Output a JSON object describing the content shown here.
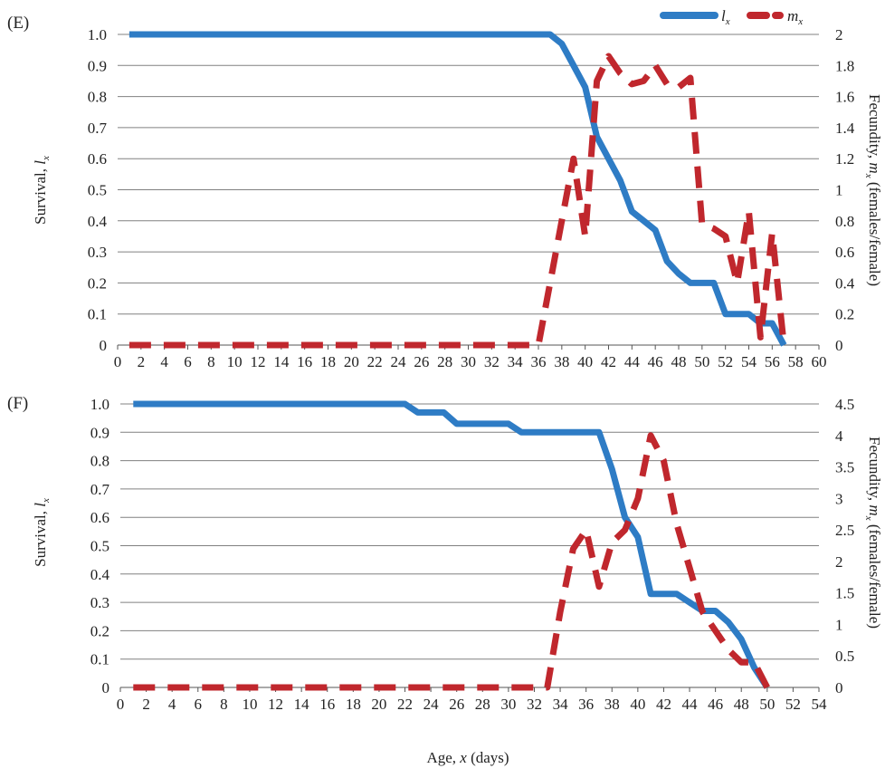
{
  "legend": {
    "items": [
      {
        "label": "l",
        "sub": "x",
        "color": "#2e7cc5",
        "style": "solid"
      },
      {
        "label": "m",
        "sub": "x",
        "color": "#c0272d",
        "style": "dashed"
      }
    ],
    "placement": "top-right"
  },
  "colors": {
    "lx": "#2e7cc5",
    "mx": "#c0272d",
    "grid": "#808080"
  },
  "chart_data": [
    {
      "panel_label": "(E)",
      "type": "line",
      "grid": true,
      "xlim": [
        0,
        60
      ],
      "xticks": [
        0,
        2,
        4,
        6,
        8,
        10,
        12,
        14,
        16,
        18,
        20,
        22,
        24,
        26,
        28,
        30,
        32,
        34,
        36,
        38,
        40,
        42,
        44,
        46,
        48,
        50,
        52,
        54,
        56,
        58,
        60
      ],
      "xlabel": "",
      "y_left": {
        "label_main": "Survival, ",
        "label_var": "l",
        "label_sub": "x",
        "lim": [
          0,
          1
        ],
        "ticks": [
          "0",
          "0.1",
          "0.2",
          "0.3",
          "0.4",
          "0.5",
          "0.6",
          "0.7",
          "0.8",
          "0.9",
          "1.0"
        ]
      },
      "y_right": {
        "label_pre": "Fecundity, ",
        "label_var": "m",
        "label_sub": "x",
        "label_post": " (females/female)",
        "lim": [
          0,
          2
        ],
        "ticks": [
          "0",
          "0.2",
          "0.4",
          "0.6",
          "0.8",
          "1",
          "1.2",
          "1.4",
          "1.6",
          "1.8",
          "2"
        ]
      },
      "series": [
        {
          "name": "lx",
          "axis": "left",
          "x": [
            1,
            36,
            37,
            38,
            39,
            40,
            41,
            42,
            43,
            44,
            45,
            46,
            47,
            48,
            49,
            50,
            51,
            52,
            53,
            54,
            55,
            56,
            57
          ],
          "y": [
            1,
            1,
            1,
            0.97,
            0.9,
            0.83,
            0.67,
            0.6,
            0.53,
            0.43,
            0.4,
            0.37,
            0.27,
            0.23,
            0.2,
            0.2,
            0.2,
            0.1,
            0.1,
            0.1,
            0.07,
            0.07,
            0
          ]
        },
        {
          "name": "mx",
          "axis": "right",
          "x": [
            1,
            36,
            37,
            38,
            39,
            40,
            41,
            42,
            43,
            44,
            45,
            46,
            47,
            48,
            49,
            50,
            51,
            52,
            53,
            54,
            55,
            56,
            57
          ],
          "y": [
            0,
            0,
            0.4,
            0.8,
            1.2,
            0.7,
            1.7,
            1.86,
            1.75,
            1.68,
            1.7,
            1.8,
            1.68,
            1.66,
            1.72,
            0.78,
            0.75,
            0.7,
            0.4,
            0.86,
            0.05,
            0.72,
            0
          ]
        }
      ]
    },
    {
      "panel_label": "(F)",
      "type": "line",
      "grid": true,
      "xlim": [
        0,
        54
      ],
      "xticks": [
        0,
        2,
        4,
        6,
        8,
        10,
        12,
        14,
        16,
        18,
        20,
        22,
        24,
        26,
        28,
        30,
        32,
        34,
        36,
        38,
        40,
        42,
        44,
        46,
        48,
        50,
        52,
        54
      ],
      "xlabel_main": "Age, ",
      "xlabel_var": "x",
      "xlabel_post": " (days)",
      "y_left": {
        "label_main": "Survival, ",
        "label_var": "l",
        "label_sub": "x",
        "lim": [
          0,
          1
        ],
        "ticks": [
          "0",
          "0.1",
          "0.2",
          "0.3",
          "0.4",
          "0.5",
          "0.6",
          "0.7",
          "0.8",
          "0.9",
          "1.0"
        ]
      },
      "y_right": {
        "label_pre": "Fecundity, ",
        "label_var": "m",
        "label_sub": "x",
        "label_post": " (females/female)",
        "lim": [
          0,
          4.5
        ],
        "ticks": [
          "0",
          "0.5",
          "1",
          "1.5",
          "2",
          "2.5",
          "3",
          "3.5",
          "4",
          "4.5"
        ]
      },
      "series": [
        {
          "name": "lx",
          "axis": "left",
          "x": [
            1,
            22,
            23,
            24,
            25,
            26,
            27,
            28,
            29,
            30,
            31,
            32,
            33,
            34,
            35,
            36,
            37,
            38,
            39,
            40,
            41,
            42,
            43,
            44,
            45,
            46,
            47,
            48,
            49,
            50
          ],
          "y": [
            1,
            1,
            0.97,
            0.97,
            0.97,
            0.93,
            0.93,
            0.93,
            0.93,
            0.93,
            0.9,
            0.9,
            0.9,
            0.9,
            0.9,
            0.9,
            0.9,
            0.77,
            0.6,
            0.53,
            0.33,
            0.33,
            0.33,
            0.3,
            0.27,
            0.27,
            0.23,
            0.17,
            0.07,
            0
          ]
        },
        {
          "name": "mx",
          "axis": "right",
          "x": [
            1,
            33,
            34,
            35,
            36,
            37,
            38,
            39,
            40,
            41,
            42,
            43,
            44,
            45,
            46,
            47,
            48,
            49,
            50
          ],
          "y": [
            0,
            0,
            1.2,
            2.2,
            2.5,
            1.6,
            2.3,
            2.5,
            3.0,
            4.0,
            3.6,
            2.6,
            1.9,
            1.2,
            0.9,
            0.6,
            0.4,
            0.4,
            0
          ]
        }
      ]
    }
  ]
}
